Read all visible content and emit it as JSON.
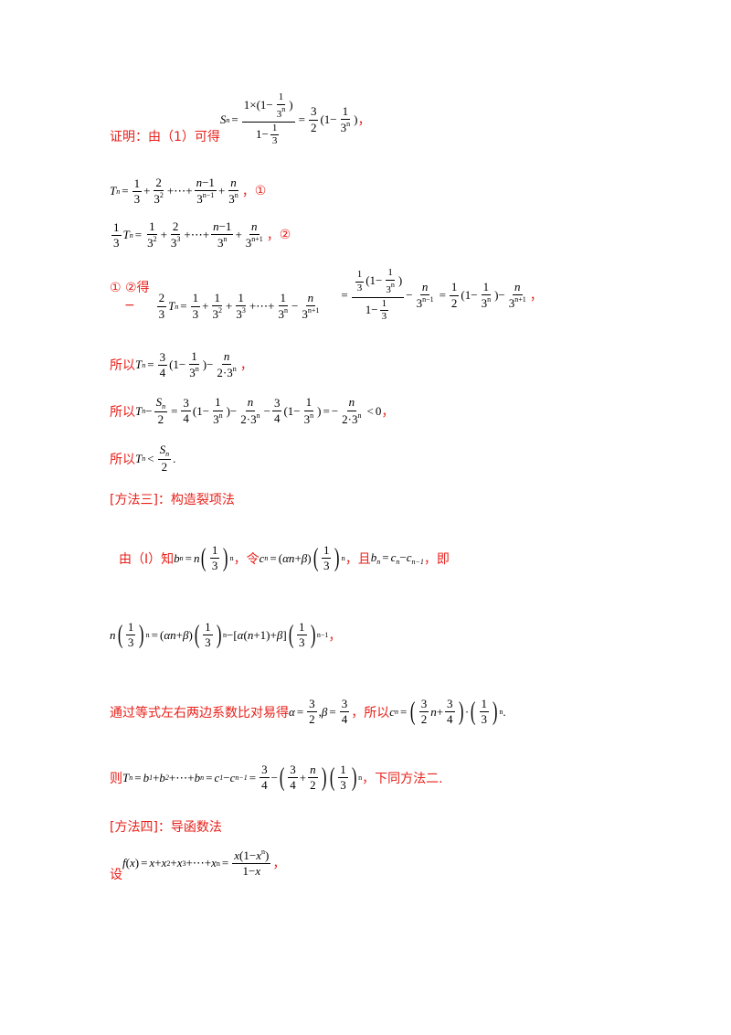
{
  "proof_intro": "证明：由（1）可得",
  "marker_1": "①",
  "marker_2": "②",
  "step_subtract": "①  ②得",
  "minus_sign": "−",
  "so_1": "所以",
  "so_2": "所以",
  "so_3": "所以",
  "method3_title": "[方法三]：构造裂项法",
  "m3_from": "由（Ⅰ）知",
  "m3_let": "，令",
  "m3_and": "，且",
  "m3_then": "，即",
  "m3_compare": "通过等式左右两边系数比对易得",
  "m3_so": "，所以",
  "m3_then2": "则",
  "m3_same": "，下同方法二.",
  "method4_title": "[方法四]：导函数法",
  "m4_let": "设",
  "comma": "，",
  "period": "."
}
